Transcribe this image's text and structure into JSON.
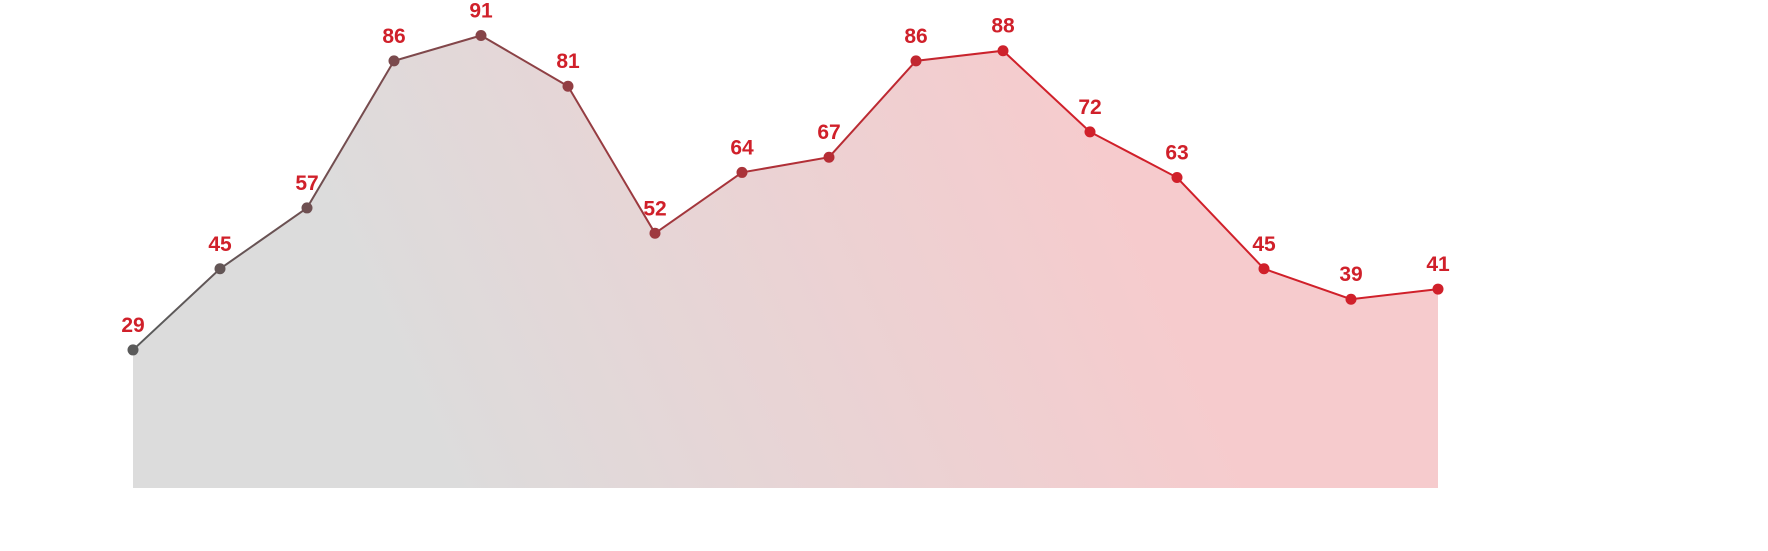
{
  "chart_data": {
    "type": "area",
    "values": [
      29,
      45,
      57,
      86,
      91,
      81,
      52,
      64,
      67,
      86,
      88,
      72,
      63,
      45,
      39,
      41
    ],
    "ylim": [
      0,
      98
    ],
    "color_start": "#5a5a5a",
    "color_end": "#d0202a",
    "fill_start": "#dcdcdc",
    "fill_end": "#f6cbcd",
    "label_color": "#d0202a"
  }
}
